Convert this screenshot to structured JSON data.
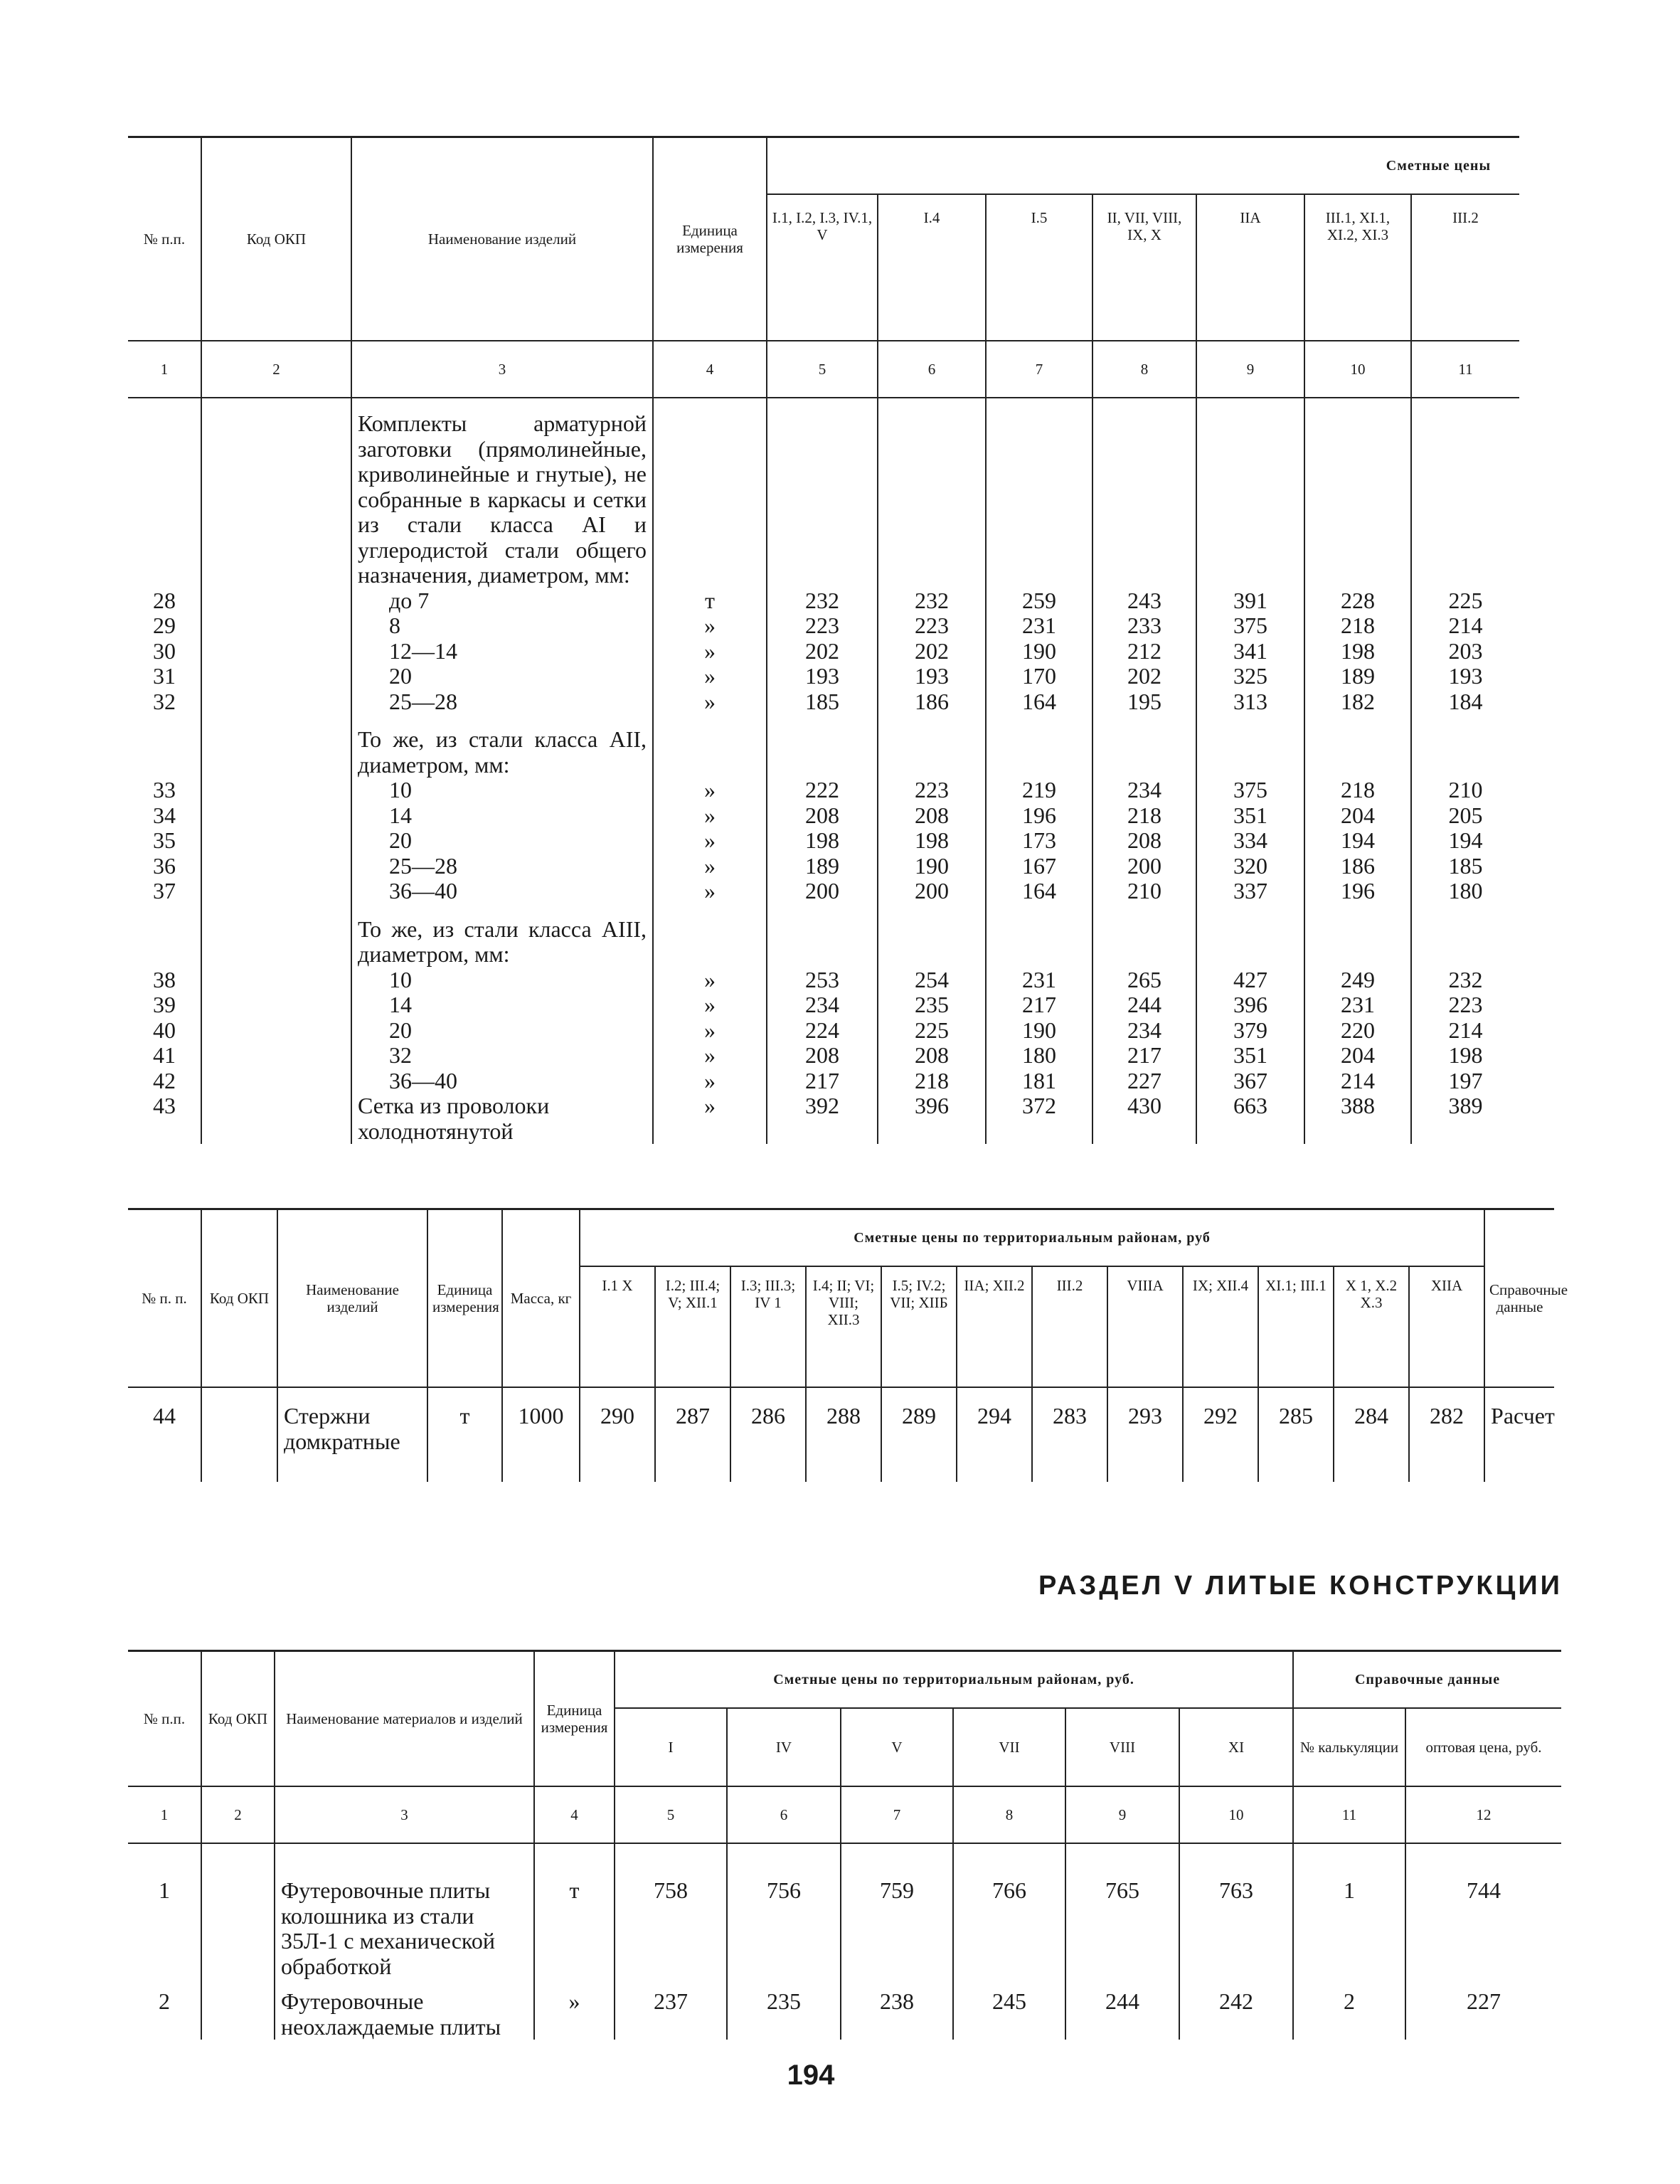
{
  "table1": {
    "header": {
      "no": "№ п.п.",
      "code": "Код ОКП",
      "name": "Наименование изделий",
      "unit": "Единица измерения",
      "prices": "Сметные цены",
      "regions": [
        "I.1, I.2, I.3, IV.1, V",
        "I.4",
        "I.5",
        "II, VII, VIII, IX, X",
        "IIA",
        "III.1, XI.1, XI.2, XI.3",
        "III.2"
      ]
    },
    "column_numbers": [
      "1",
      "2",
      "3",
      "4",
      "5",
      "6",
      "7",
      "8",
      "9",
      "10",
      "11"
    ],
    "rows": [
      {
        "name": "Комплекты арматурной заготовки (прямолинейные, криволинейные и гнутые), не собранные в каркасы и сетки из стали класса AI и углеродистой стали общего назначения, диаметром, мм:"
      },
      {
        "no": "28",
        "name": "до 7",
        "unit": "т",
        "prices": [
          232,
          232,
          259,
          243,
          391,
          228,
          225
        ]
      },
      {
        "no": "29",
        "name": "8",
        "unit": "»",
        "prices": [
          223,
          223,
          231,
          233,
          375,
          218,
          214
        ]
      },
      {
        "no": "30",
        "name": "12—14",
        "unit": "»",
        "prices": [
          202,
          202,
          190,
          212,
          341,
          198,
          203
        ]
      },
      {
        "no": "31",
        "name": "20",
        "unit": "»",
        "prices": [
          193,
          193,
          170,
          202,
          325,
          189,
          193
        ]
      },
      {
        "no": "32",
        "name": "25—28",
        "unit": "»",
        "prices": [
          185,
          186,
          164,
          195,
          313,
          182,
          184
        ]
      },
      {
        "name": "То же, из стали класса AII, диаметром, мм:"
      },
      {
        "no": "33",
        "name": "10",
        "unit": "»",
        "prices": [
          222,
          223,
          219,
          234,
          375,
          218,
          210
        ]
      },
      {
        "no": "34",
        "name": "14",
        "unit": "»",
        "prices": [
          208,
          208,
          196,
          218,
          351,
          204,
          205
        ]
      },
      {
        "no": "35",
        "name": "20",
        "unit": "»",
        "prices": [
          198,
          198,
          173,
          208,
          334,
          194,
          194
        ]
      },
      {
        "no": "36",
        "name": "25—28",
        "unit": "»",
        "prices": [
          189,
          190,
          167,
          200,
          320,
          186,
          185
        ]
      },
      {
        "no": "37",
        "name": "36—40",
        "unit": "»",
        "prices": [
          200,
          200,
          164,
          210,
          337,
          196,
          180
        ]
      },
      {
        "name": "То же, из стали класса AIII, диаметром, мм:"
      },
      {
        "no": "38",
        "name": "10",
        "unit": "»",
        "prices": [
          253,
          254,
          231,
          265,
          427,
          249,
          232
        ]
      },
      {
        "no": "39",
        "name": "14",
        "unit": "»",
        "prices": [
          234,
          235,
          217,
          244,
          396,
          231,
          223
        ]
      },
      {
        "no": "40",
        "name": "20",
        "unit": "»",
        "prices": [
          224,
          225,
          190,
          234,
          379,
          220,
          214
        ]
      },
      {
        "no": "41",
        "name": "32",
        "unit": "»",
        "prices": [
          208,
          208,
          180,
          217,
          351,
          204,
          198
        ]
      },
      {
        "no": "42",
        "name": "36—40",
        "unit": "»",
        "prices": [
          217,
          218,
          181,
          227,
          367,
          214,
          197
        ]
      },
      {
        "no": "43",
        "name": "Сетка из проволоки холоднотянутой",
        "unit": "»",
        "prices": [
          392,
          396,
          372,
          430,
          663,
          388,
          389
        ]
      }
    ]
  },
  "table2": {
    "header": {
      "no": "№ п. п.",
      "code": "Код ОКП",
      "name": "Наименование изделий",
      "unit": "Единица измерения",
      "mass": "Масса, кг",
      "prices": "Сметные цены по территориальным районам, руб",
      "regions": [
        "I.1 X",
        "I.2; III.4; V; XII.1",
        "I.3; III.3; IV 1",
        "I.4; II; VI; VIII; XII.3",
        "I.5; IV.2; VII; XIIБ",
        "IIA; XII.2",
        "III.2",
        "VIIIA",
        "IX; XII.4",
        "XI.1; III.1",
        "X 1, X.2 X.3",
        "XIIA"
      ],
      "ref": "Справочные данные"
    },
    "rows": [
      {
        "no": "44",
        "name": "Стержни домкратные",
        "unit": "т",
        "mass": 1000,
        "prices": [
          290,
          287,
          286,
          288,
          289,
          294,
          283,
          293,
          292,
          285,
          284,
          282
        ],
        "ref": "Расчет"
      }
    ]
  },
  "section_heading": "РАЗДЕЛ V ЛИТЫЕ КОНСТРУКЦИИ",
  "table3": {
    "header": {
      "no": "№ п.п.",
      "code": "Код ОКП",
      "name": "Наименование материалов и изделий",
      "unit": "Единица измерения",
      "prices": "Сметные цены по территориальным районам, руб.",
      "regions": [
        "I",
        "IV",
        "V",
        "VII",
        "VIII",
        "XI"
      ],
      "ref": "Справочные данные",
      "ref_columns": [
        "№ калькуляции",
        "оптовая цена, руб."
      ]
    },
    "column_numbers": [
      "1",
      "2",
      "3",
      "4",
      "5",
      "6",
      "7",
      "8",
      "9",
      "10",
      "11",
      "12"
    ],
    "rows": [
      {
        "no": "1",
        "name": "Футеровочные плиты колошника из стали 35Л-1 с механической обработкой",
        "unit": "т",
        "prices": [
          758,
          756,
          759,
          766,
          765,
          763
        ],
        "calc": 1,
        "wholesale": 744
      },
      {
        "no": "2",
        "name": "Футеровочные неохлаждаемые плиты",
        "unit": "»",
        "prices": [
          237,
          235,
          238,
          245,
          244,
          242
        ],
        "calc": 2,
        "wholesale": 227
      }
    ]
  },
  "page_number": "194"
}
